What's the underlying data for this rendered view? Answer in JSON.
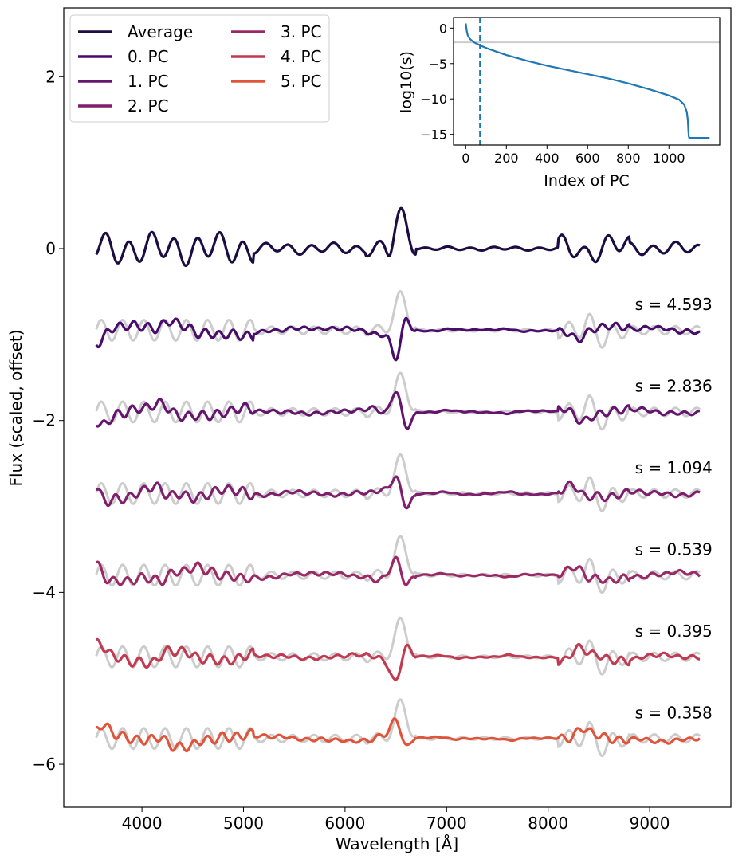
{
  "chart_data": [
    {
      "type": "line",
      "title": "",
      "xlabel": "Wavelength [Å]",
      "ylabel": "Flux (scaled, offset)",
      "xlim": [
        3230,
        9800
      ],
      "ylim": [
        -6.5,
        2.8
      ],
      "xticks": [
        4000,
        5000,
        6000,
        7000,
        8000,
        9000
      ],
      "xtick_labels": [
        "4000",
        "5000",
        "6000",
        "7000",
        "8000",
        "9000"
      ],
      "yticks": [
        2,
        0,
        -2,
        -4,
        -6
      ],
      "ytick_labels": [
        "2",
        "0",
        "−2",
        "−4",
        "−6"
      ],
      "grid": false,
      "legend_position": "top-left",
      "legend_columns": 2,
      "series": [
        {
          "name": "Average",
          "offset": 0.0,
          "color": "#1b0c41",
          "scale": 1.0
        },
        {
          "name": "0. PC",
          "offset": -0.95,
          "color": "#4a0c6b",
          "scale": -1.0
        },
        {
          "name": "1. PC",
          "offset": -1.9,
          "color": "#65156e",
          "scale": 0.9
        },
        {
          "name": "2. PC",
          "offset": -2.85,
          "color": "#7e1e6c",
          "scale": 0.7
        },
        {
          "name": "3. PC",
          "offset": -3.8,
          "color": "#9a2865",
          "scale": 0.6
        },
        {
          "name": "4. PC",
          "offset": -4.75,
          "color": "#c03a51",
          "scale": -0.8
        },
        {
          "name": "5. PC",
          "offset": -5.7,
          "color": "#e0553a",
          "scale": 0.7
        }
      ],
      "reference_color": "#cccccc",
      "annotations": [
        {
          "text": "s = 4.593",
          "x": 9500,
          "y": -0.65
        },
        {
          "text": "s = 2.836",
          "x": 9500,
          "y": -1.6
        },
        {
          "text": "s = 1.094",
          "x": 9500,
          "y": -2.55
        },
        {
          "text": "s = 0.539",
          "x": 9500,
          "y": -3.5
        },
        {
          "text": "s = 0.395",
          "x": 9500,
          "y": -4.45
        },
        {
          "text": "s = 0.358",
          "x": 9500,
          "y": -5.4
        }
      ]
    },
    {
      "type": "line",
      "title": "",
      "xlabel": "Index of PC",
      "ylabel": "log10(s)",
      "xlim": [
        -60,
        1250
      ],
      "ylim": [
        -16.5,
        1.5
      ],
      "xticks": [
        0,
        200,
        400,
        600,
        800,
        1000
      ],
      "xtick_labels": [
        "0",
        "200",
        "400",
        "600",
        "800",
        "1000"
      ],
      "yticks": [
        0,
        -5,
        -10,
        -15
      ],
      "ytick_labels": [
        "0",
        "−5",
        "−10",
        "−15"
      ],
      "color": "#1f77b4",
      "series": [
        {
          "name": "",
          "x": [
            0,
            5,
            10,
            20,
            40,
            70,
            100,
            150,
            200,
            300,
            400,
            500,
            600,
            700,
            800,
            900,
            1000,
            1050,
            1075,
            1088,
            1093,
            1096,
            1098,
            1100,
            1200
          ],
          "y": [
            0.66,
            -0.4,
            -1.0,
            -1.5,
            -2.0,
            -2.4,
            -2.8,
            -3.3,
            -3.8,
            -4.6,
            -5.3,
            -5.9,
            -6.5,
            -7.1,
            -7.8,
            -8.6,
            -9.5,
            -10.1,
            -10.8,
            -11.8,
            -13.0,
            -14.5,
            -15.3,
            -15.5,
            -15.5
          ]
        }
      ],
      "hline_y": -2.0,
      "hline_color": "#cccccc",
      "vline_x": 70,
      "vline_color": "#1f77b4"
    }
  ]
}
